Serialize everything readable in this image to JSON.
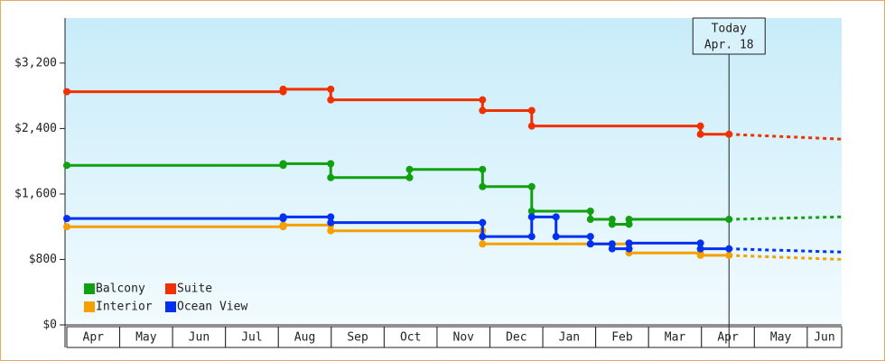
{
  "chart_data": {
    "type": "step-line",
    "categories": [
      "Apr",
      "May",
      "Jun",
      "Jul",
      "Aug",
      "Sep",
      "Oct",
      "Nov",
      "Dec",
      "Jan",
      "Feb",
      "Mar",
      "Apr",
      "May",
      "Jun"
    ],
    "xlim": [
      0,
      14.65
    ],
    "ylim": [
      0,
      3750
    ],
    "yticks": [
      {
        "value": 0,
        "label": "$0"
      },
      {
        "value": 800,
        "label": "$800"
      },
      {
        "value": 1600,
        "label": "$1,600"
      },
      {
        "value": 2400,
        "label": "$2,400"
      },
      {
        "value": 3200,
        "label": "$3,200"
      }
    ],
    "grid": false,
    "legend": "bottom-left",
    "today": {
      "x": 12.52,
      "label": "Today",
      "date": "Apr. 18"
    },
    "series": [
      {
        "name": "Balcony",
        "color": "#10a010",
        "x": [
          0,
          4.09,
          4.09,
          4.99,
          4.99,
          6.48,
          6.48,
          7.86,
          7.86,
          8.79,
          8.79,
          9.9,
          9.9,
          10.31,
          10.31,
          10.63,
          10.63,
          12.52
        ],
        "values": [
          1950,
          1950,
          1970,
          1970,
          1800,
          1800,
          1900,
          1900,
          1690,
          1690,
          1390,
          1390,
          1290,
          1290,
          1230,
          1230,
          1290,
          1290
        ],
        "forecast": {
          "x": [
            12.52,
            14.65
          ],
          "values": [
            1290,
            1320
          ]
        }
      },
      {
        "name": "Interior",
        "color": "#f5a000",
        "x": [
          0,
          4.09,
          4.09,
          4.99,
          4.99,
          7.86,
          7.86,
          10.63,
          10.63,
          11.98,
          11.98,
          12.52
        ],
        "values": [
          1200,
          1200,
          1220,
          1220,
          1150,
          1150,
          990,
          990,
          880,
          880,
          850,
          850
        ],
        "forecast": {
          "x": [
            12.52,
            14.65
          ],
          "values": [
            850,
            800
          ]
        }
      },
      {
        "name": "Suite",
        "color": "#f03000",
        "x": [
          0,
          4.09,
          4.09,
          4.99,
          4.99,
          7.86,
          7.86,
          8.79,
          8.79,
          11.98,
          11.98,
          12.52
        ],
        "values": [
          2850,
          2850,
          2880,
          2880,
          2750,
          2750,
          2620,
          2620,
          2430,
          2430,
          2330,
          2330
        ],
        "forecast": {
          "x": [
            12.52,
            14.65
          ],
          "values": [
            2330,
            2270
          ]
        }
      },
      {
        "name": "Ocean View",
        "color": "#0030f0",
        "x": [
          0,
          4.09,
          4.09,
          4.99,
          4.99,
          7.86,
          7.86,
          8.79,
          8.79,
          9.25,
          9.25,
          9.9,
          9.9,
          10.31,
          10.31,
          10.63,
          10.63,
          11.98,
          11.98,
          12.52
        ],
        "values": [
          1300,
          1300,
          1320,
          1320,
          1250,
          1250,
          1080,
          1080,
          1320,
          1320,
          1080,
          1080,
          990,
          990,
          930,
          930,
          1000,
          1000,
          930,
          930
        ],
        "forecast": {
          "x": [
            12.52,
            14.65
          ],
          "values": [
            930,
            890
          ]
        }
      }
    ]
  }
}
